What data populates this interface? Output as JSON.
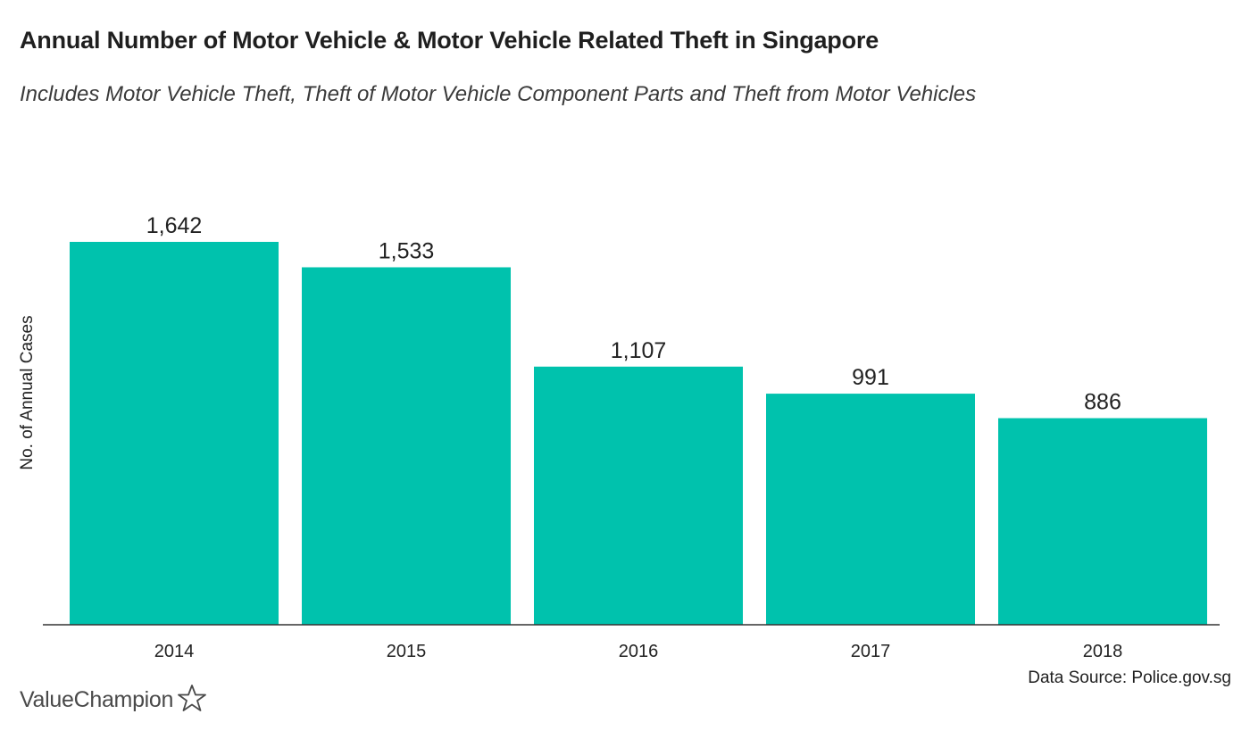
{
  "brand": {
    "name": "ValueChampion"
  },
  "source": "Data Source: Police.gov.sg",
  "colors": {
    "bar": "#00c2ad",
    "text": "#222222",
    "axis": "#333333"
  },
  "chart_data": {
    "type": "bar",
    "title": "Annual Number of Motor Vehicle & Motor Vehicle Related Theft in Singapore",
    "subtitle": "Includes Motor Vehicle Theft, Theft of Motor Vehicle Component Parts and Theft from Motor Vehicles",
    "xlabel": "",
    "ylabel": "No. of Annual Cases",
    "categories": [
      "2014",
      "2015",
      "2016",
      "2017",
      "2018"
    ],
    "values": [
      1642,
      1533,
      1107,
      991,
      886
    ],
    "value_labels": [
      "1,642",
      "1,533",
      "1,107",
      "991",
      "886"
    ],
    "ylim": [
      0,
      1642
    ],
    "grid": false,
    "legend": "none"
  }
}
